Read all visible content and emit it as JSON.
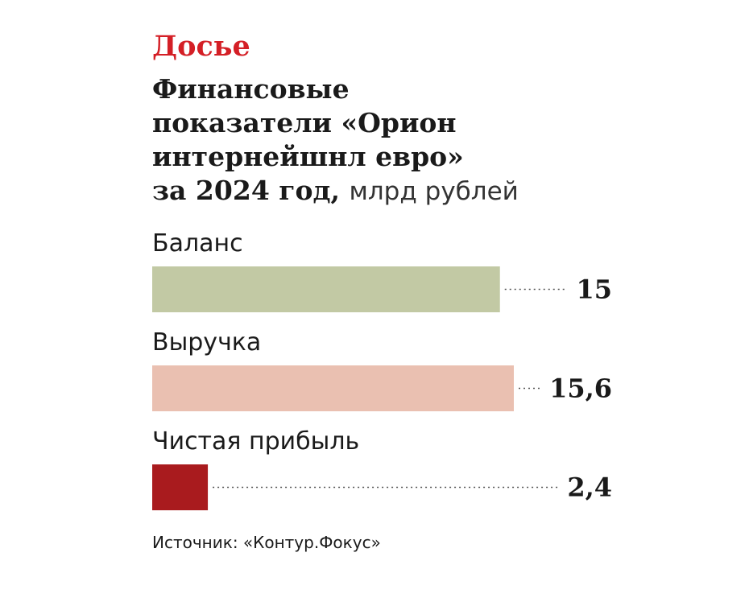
{
  "kicker": "Досье",
  "headline": {
    "line1": "Финансовые",
    "line2": "показатели «Орион",
    "line3": "интернейшнл евро»",
    "line4": "за 2024 год,",
    "unit": "млрд рублей"
  },
  "source": "Источник: «Контур.Фокус»",
  "colors": {
    "kicker": "#d41f26",
    "balance": "#c2c9a4",
    "revenue": "#eac0b1",
    "profit": "#a91b1e"
  },
  "chart_data": {
    "type": "bar",
    "orientation": "horizontal",
    "categories": [
      "Баланс",
      "Выручка",
      "Чистая прибыль"
    ],
    "values": [
      15,
      15.6,
      2.4
    ],
    "value_labels": [
      "15",
      "15,6",
      "2,4"
    ],
    "bar_colors": [
      "#c2c9a4",
      "#eac0b1",
      "#a91b1e"
    ],
    "title": "Финансовые показатели «Орион интернейшнл евро» за 2024 год",
    "unit": "млрд рублей",
    "xlim": [
      0,
      15.6
    ],
    "grid": false,
    "legend": "none"
  }
}
